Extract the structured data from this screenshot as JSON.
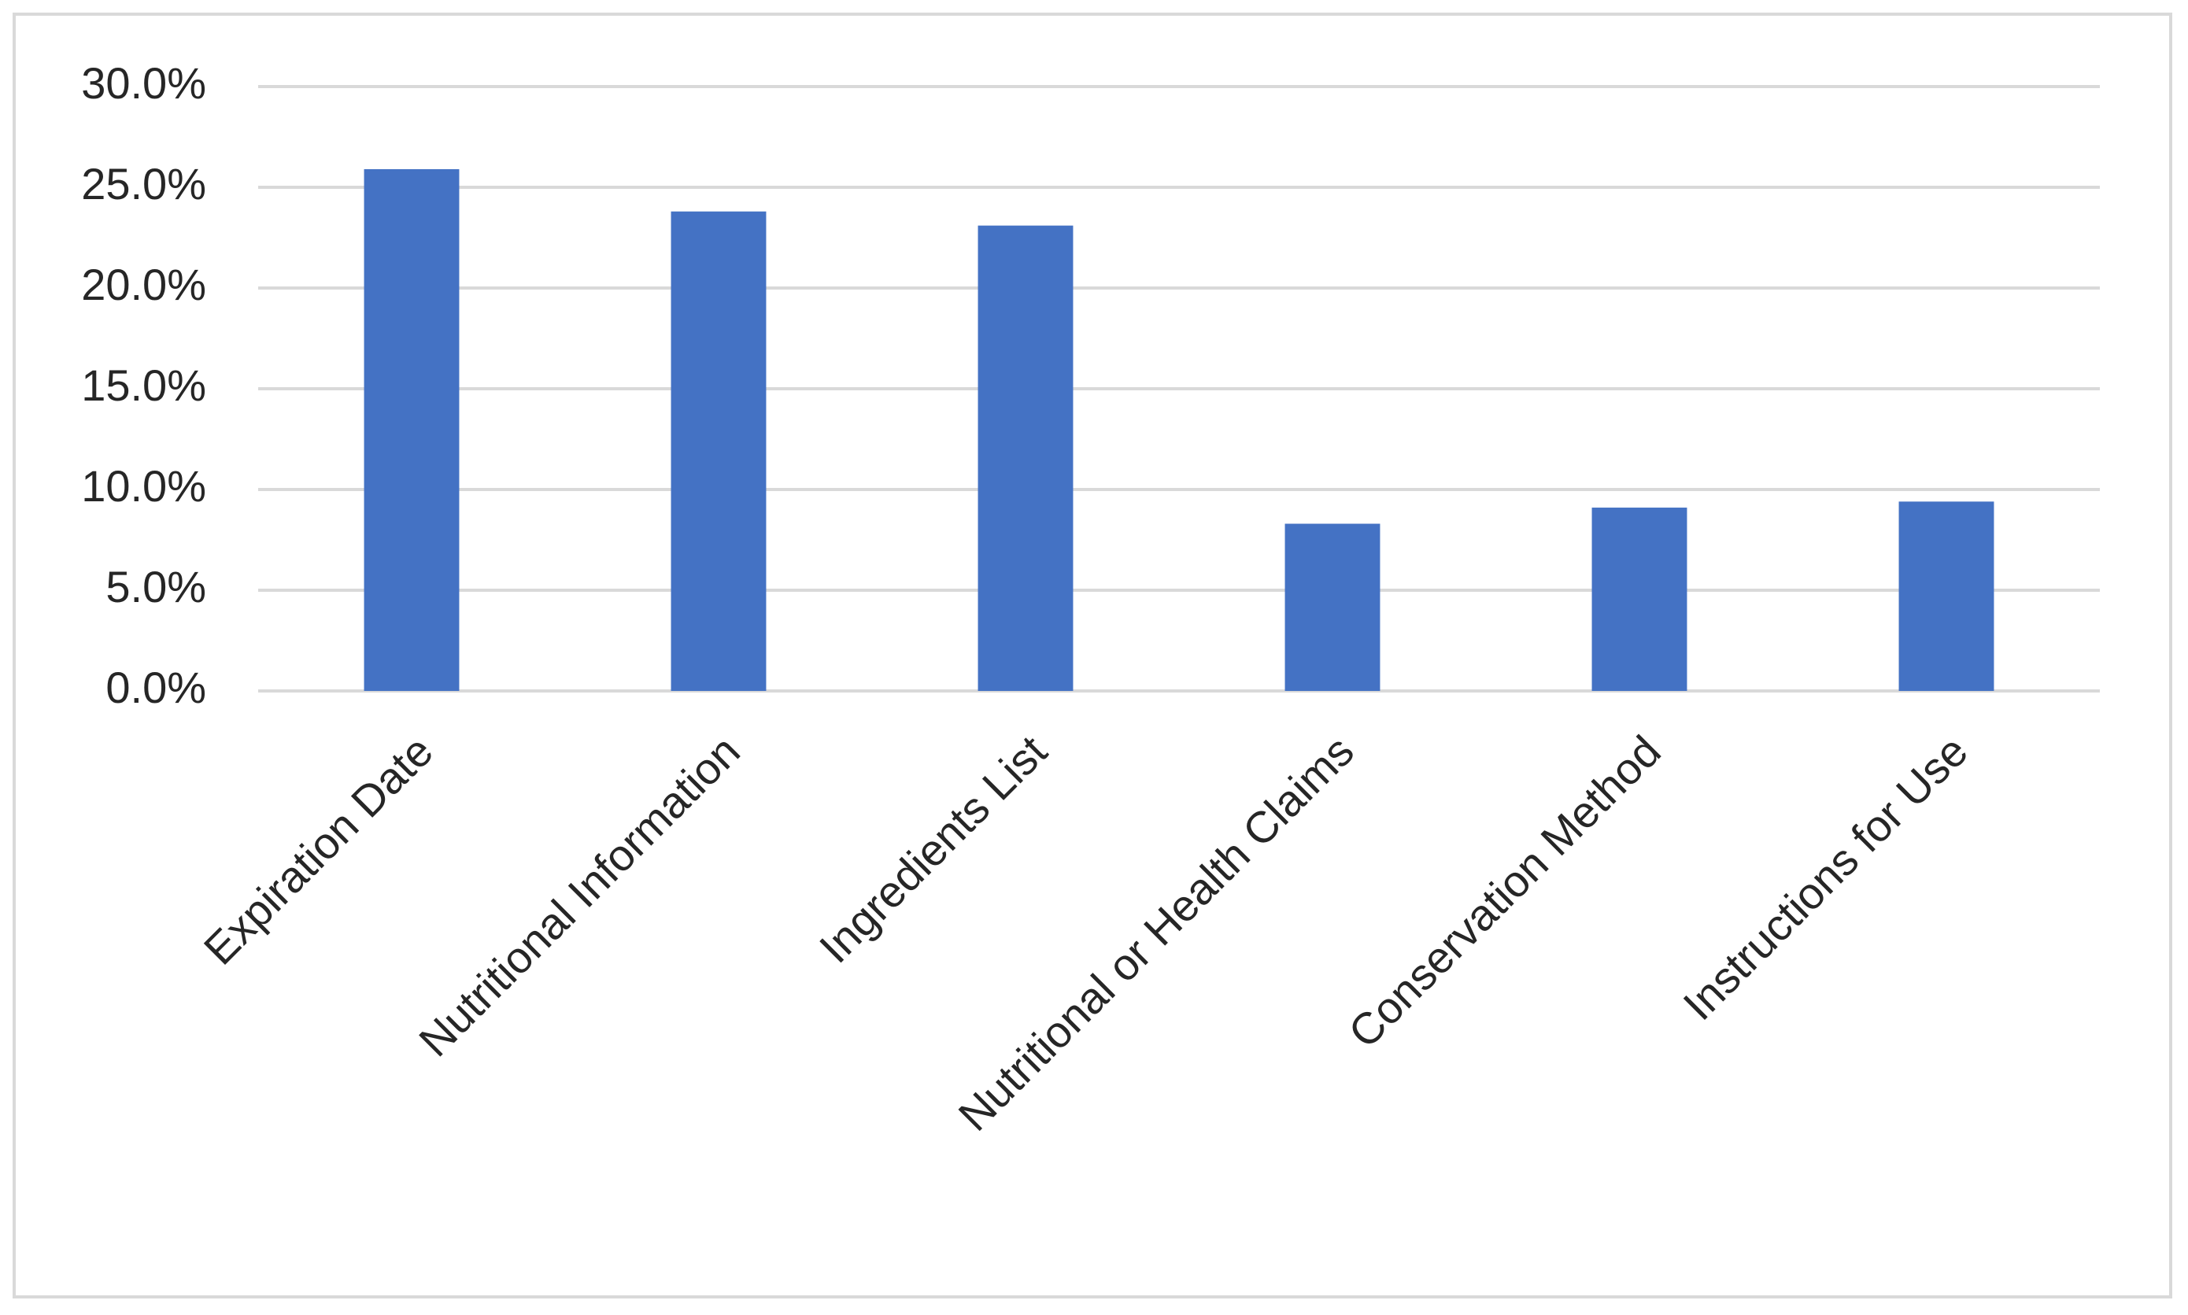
{
  "chart_data": {
    "type": "bar",
    "categories": [
      "Expiration Date",
      "Nutritional Information",
      "Ingredients List",
      "Nutritional or Health Claims",
      "Conservation Method",
      "Instructions for Use"
    ],
    "values": [
      25.9,
      23.8,
      23.1,
      8.3,
      9.1,
      9.4
    ],
    "color": "#4472c4",
    "ylim": [
      0,
      30
    ],
    "yticks": [
      {
        "value": 0,
        "label": "0.0%"
      },
      {
        "value": 5,
        "label": "5.0%"
      },
      {
        "value": 10,
        "label": "10.0%"
      },
      {
        "value": 15,
        "label": "15.0%"
      },
      {
        "value": 20,
        "label": "20.0%"
      },
      {
        "value": 25,
        "label": "25.0%"
      },
      {
        "value": 30,
        "label": "30.0%"
      }
    ],
    "grid": true
  }
}
